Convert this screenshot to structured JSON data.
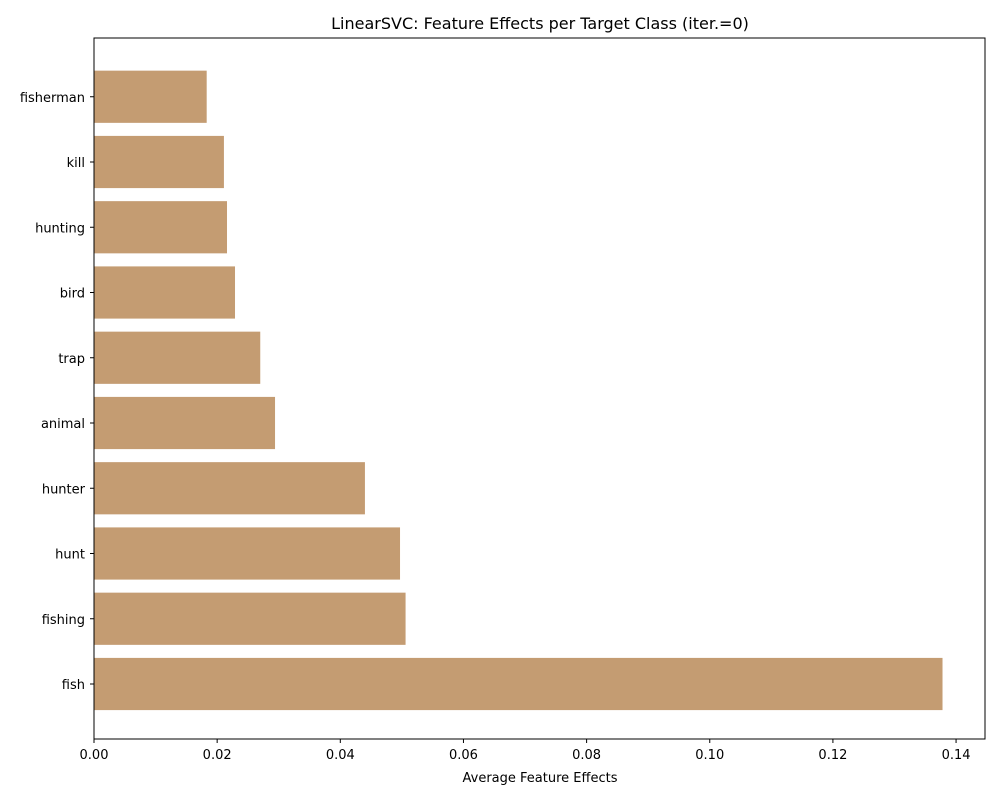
{
  "chart_data": {
    "type": "bar",
    "orientation": "horizontal",
    "title": "LinearSVC: Feature Effects per Target Class (iter.=0)",
    "xlabel": "Average Feature Effects",
    "ylabel": "",
    "categories": [
      "fish",
      "fishing",
      "hunt",
      "hunter",
      "animal",
      "trap",
      "bird",
      "hunting",
      "kill",
      "fisherman"
    ],
    "values": [
      0.1378,
      0.0506,
      0.0497,
      0.044,
      0.0294,
      0.027,
      0.0229,
      0.0216,
      0.0211,
      0.0183
    ],
    "xlim": [
      0,
      0.1447
    ],
    "xticks": [
      0.0,
      0.02,
      0.04,
      0.06,
      0.08,
      0.1,
      0.12,
      0.14
    ],
    "xtick_labels": [
      "0.00",
      "0.02",
      "0.04",
      "0.06",
      "0.08",
      "0.10",
      "0.12",
      "0.14"
    ],
    "bar_color": "#c49c72",
    "grid": false,
    "legend": "none"
  }
}
